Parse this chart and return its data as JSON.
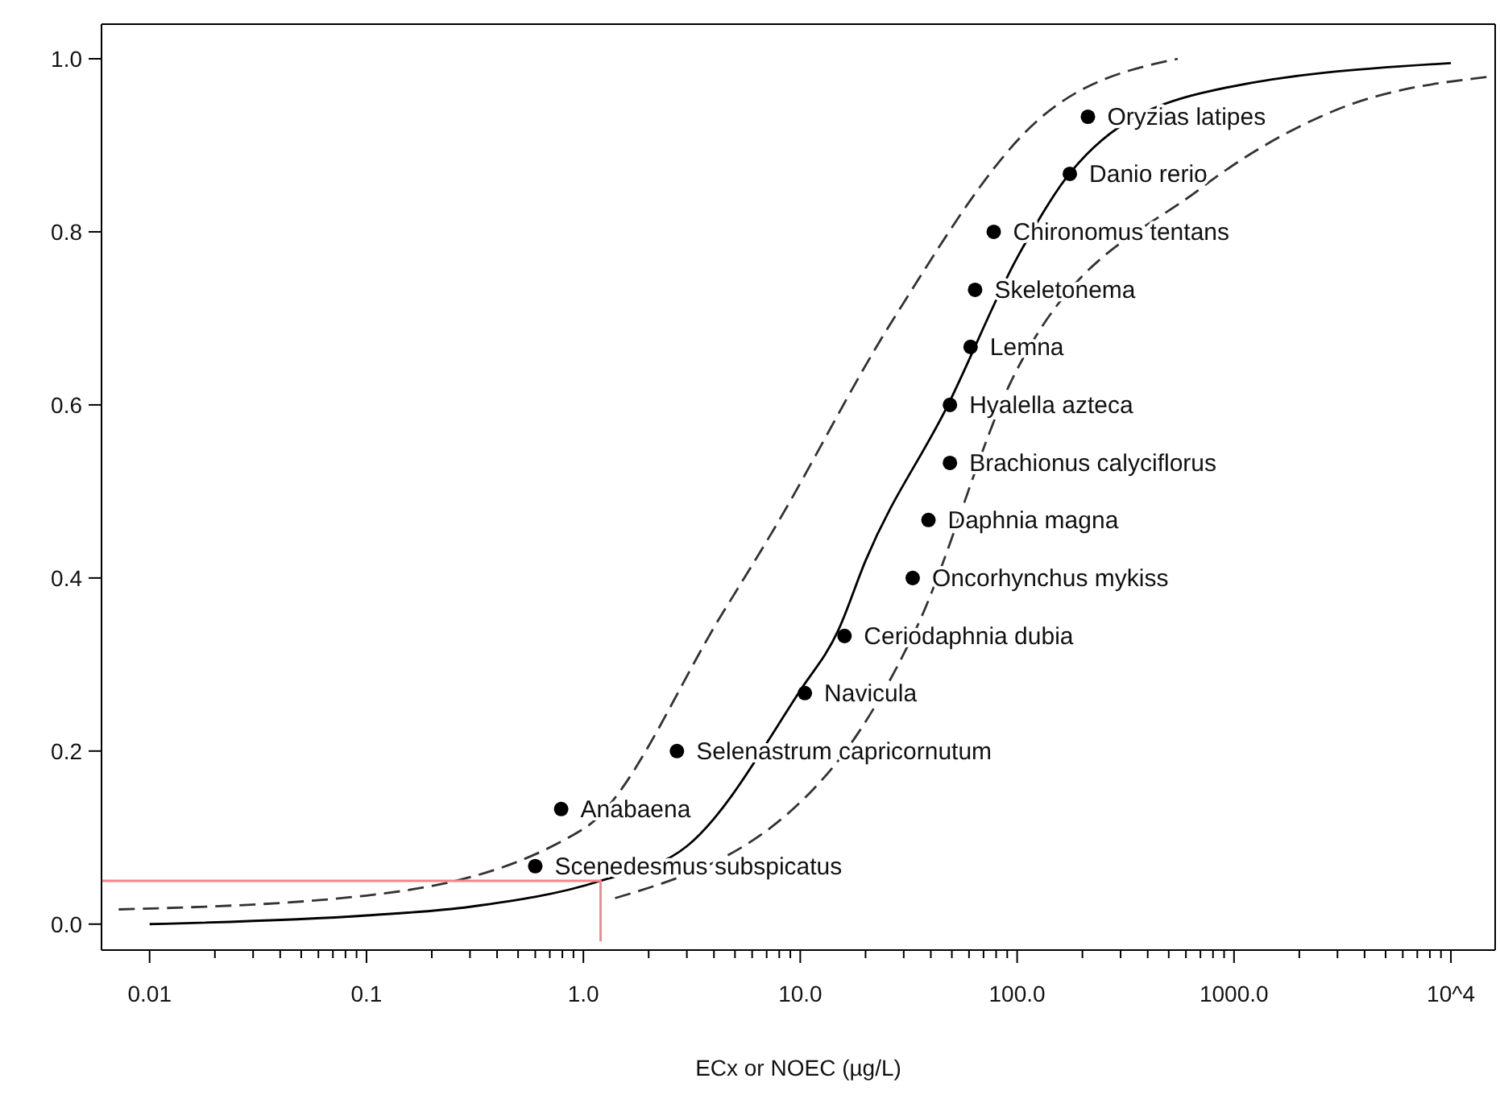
{
  "chart_data": {
    "type": "scatter",
    "xlabel": "ECx or NOEC (µg/L)",
    "log": "x",
    "xlim": [
      0.006,
      16000
    ],
    "ylim": [
      -0.03,
      1.04
    ],
    "xticks": [
      {
        "value": 0.01,
        "label": "0.01"
      },
      {
        "value": 0.02,
        "label": null
      },
      {
        "value": 0.03,
        "label": null
      },
      {
        "value": 0.04,
        "label": null
      },
      {
        "value": 0.05,
        "label": null
      },
      {
        "value": 0.06,
        "label": null
      },
      {
        "value": 0.07,
        "label": null
      },
      {
        "value": 0.08,
        "label": null
      },
      {
        "value": 0.09,
        "label": null
      },
      {
        "value": 0.1,
        "label": "0.1"
      },
      {
        "value": 0.2,
        "label": null
      },
      {
        "value": 0.3,
        "label": null
      },
      {
        "value": 0.4,
        "label": null
      },
      {
        "value": 0.5,
        "label": null
      },
      {
        "value": 0.6,
        "label": null
      },
      {
        "value": 0.7,
        "label": null
      },
      {
        "value": 0.8,
        "label": null
      },
      {
        "value": 0.9,
        "label": null
      },
      {
        "value": 1,
        "label": "1.0"
      },
      {
        "value": 2,
        "label": null
      },
      {
        "value": 3,
        "label": null
      },
      {
        "value": 4,
        "label": null
      },
      {
        "value": 5,
        "label": null
      },
      {
        "value": 6,
        "label": null
      },
      {
        "value": 7,
        "label": null
      },
      {
        "value": 8,
        "label": null
      },
      {
        "value": 9,
        "label": null
      },
      {
        "value": 10,
        "label": "10.0"
      },
      {
        "value": 20,
        "label": null
      },
      {
        "value": 30,
        "label": null
      },
      {
        "value": 40,
        "label": null
      },
      {
        "value": 50,
        "label": null
      },
      {
        "value": 60,
        "label": null
      },
      {
        "value": 70,
        "label": null
      },
      {
        "value": 80,
        "label": null
      },
      {
        "value": 90,
        "label": null
      },
      {
        "value": 100,
        "label": "100.0"
      },
      {
        "value": 200,
        "label": null
      },
      {
        "value": 300,
        "label": null
      },
      {
        "value": 400,
        "label": null
      },
      {
        "value": 500,
        "label": null
      },
      {
        "value": 600,
        "label": null
      },
      {
        "value": 700,
        "label": null
      },
      {
        "value": 800,
        "label": null
      },
      {
        "value": 900,
        "label": null
      },
      {
        "value": 1000,
        "label": "1000.0"
      },
      {
        "value": 2000,
        "label": null
      },
      {
        "value": 3000,
        "label": null
      },
      {
        "value": 4000,
        "label": null
      },
      {
        "value": 5000,
        "label": null
      },
      {
        "value": 6000,
        "label": null
      },
      {
        "value": 7000,
        "label": null
      },
      {
        "value": 8000,
        "label": null
      },
      {
        "value": 9000,
        "label": null
      },
      {
        "value": 10000,
        "label": "10^4"
      }
    ],
    "yticks": [
      {
        "value": 0,
        "label": "0.0"
      },
      {
        "value": 0.2,
        "label": "0.2"
      },
      {
        "value": 0.4,
        "label": "0.4"
      },
      {
        "value": 0.6,
        "label": "0.6"
      },
      {
        "value": 0.8,
        "label": "0.8"
      },
      {
        "value": 1,
        "label": "1.0"
      }
    ],
    "series": [
      {
        "type": "line",
        "color": "#000000",
        "marker": "none",
        "line_style": "solid",
        "x": [
          0.01,
          0.1,
          0.3,
          1.2,
          3,
          10,
          15,
          20,
          48,
          100,
          178,
          700,
          10000
        ],
        "values": [
          0.0,
          0.01,
          0.02,
          0.05,
          0.09,
          0.27,
          0.34,
          0.42,
          0.6,
          0.77,
          0.87,
          0.96,
          0.995
        ]
      },
      {
        "type": "line",
        "color": "#333333",
        "marker": "none",
        "line_style": "dashed",
        "x": [
          0.0072,
          0.1,
          1,
          4.4,
          7.3,
          27,
          126,
          550
        ],
        "values": [
          0.017,
          0.033,
          0.11,
          0.36,
          0.45,
          0.7,
          0.93,
          1.0
        ]
      },
      {
        "type": "line",
        "color": "#333333",
        "marker": "none",
        "line_style": "dashed",
        "x": [
          1.4,
          14,
          34,
          95,
          700,
          2900,
          16000
        ],
        "values": [
          0.03,
          0.18,
          0.34,
          0.63,
          0.85,
          0.94,
          0.98
        ]
      },
      {
        "type": "line",
        "color": "#f4868a",
        "marker": "none",
        "line_style": "solid",
        "x": [
          0.006,
          1.2,
          1.2
        ],
        "values": [
          0.05,
          0.05,
          -0.02
        ]
      },
      {
        "type": "scatter",
        "color": "#000000",
        "marker": "circle",
        "x": [
          0.6,
          0.79,
          2.7,
          10.5,
          16,
          33,
          39,
          49,
          49,
          61,
          64,
          78,
          175,
          212
        ],
        "values": [
          0.067,
          0.133,
          0.2,
          0.267,
          0.333,
          0.4,
          0.467,
          0.533,
          0.6,
          0.667,
          0.733,
          0.8,
          0.867,
          0.933
        ]
      }
    ],
    "annotations": [
      {
        "text": "Scenedesmus subspicatus",
        "x": 0.6,
        "y": 0.067
      },
      {
        "text": "Anabaena",
        "x": 0.79,
        "y": 0.133
      },
      {
        "text": "Selenastrum capricornutum",
        "x": 2.7,
        "y": 0.2
      },
      {
        "text": "Navicula",
        "x": 10.5,
        "y": 0.267
      },
      {
        "text": "Ceriodaphnia dubia",
        "x": 16,
        "y": 0.333
      },
      {
        "text": "Oncorhynchus mykiss",
        "x": 33,
        "y": 0.4
      },
      {
        "text": "Daphnia magna",
        "x": 39,
        "y": 0.467
      },
      {
        "text": "Brachionus calyciflorus",
        "x": 49,
        "y": 0.533
      },
      {
        "text": "Hyalella azteca",
        "x": 49,
        "y": 0.6
      },
      {
        "text": "Lemna",
        "x": 61,
        "y": 0.667
      },
      {
        "text": "Skeletonema",
        "x": 64,
        "y": 0.733
      },
      {
        "text": "Chironomus tentans",
        "x": 78,
        "y": 0.8
      },
      {
        "text": "Danio rerio",
        "x": 175,
        "y": 0.867
      },
      {
        "text": "Oryzias latipes",
        "x": 212,
        "y": 0.933
      }
    ]
  }
}
